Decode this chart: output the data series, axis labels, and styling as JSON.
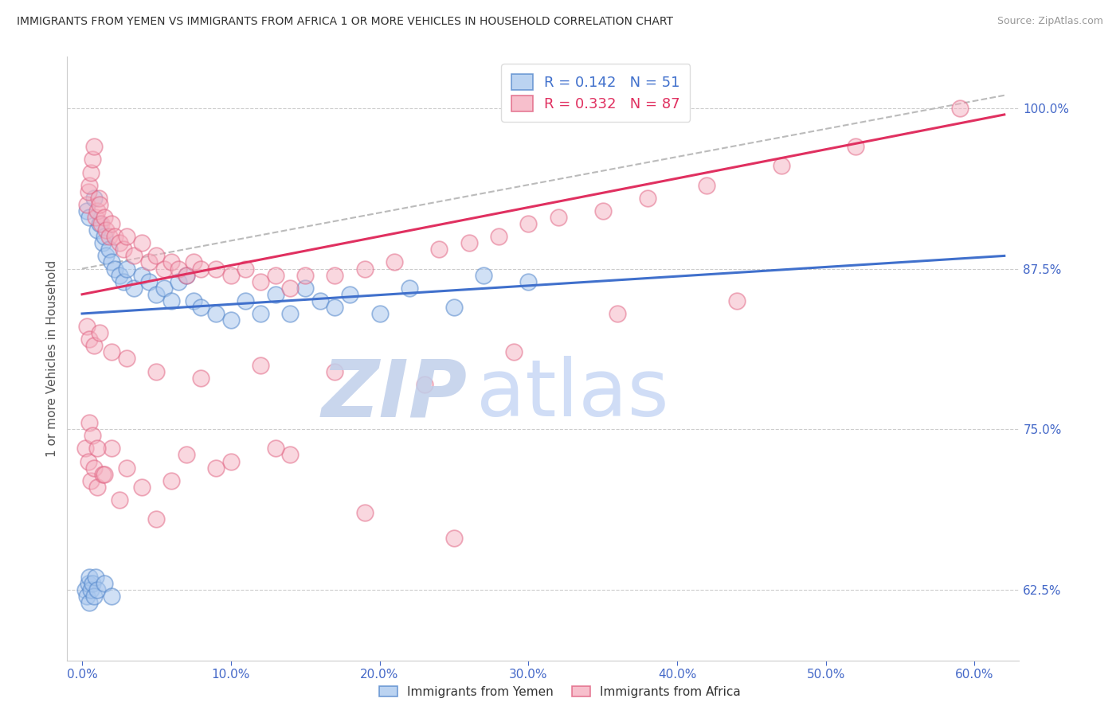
{
  "title": "IMMIGRANTS FROM YEMEN VS IMMIGRANTS FROM AFRICA 1 OR MORE VEHICLES IN HOUSEHOLD CORRELATION CHART",
  "source": "Source: ZipAtlas.com",
  "ylabel": "1 or more Vehicles in Household",
  "xlabel_ticks": [
    "0.0%",
    "10.0%",
    "20.0%",
    "30.0%",
    "40.0%",
    "50.0%",
    "60.0%"
  ],
  "xlabel_vals": [
    0.0,
    10.0,
    20.0,
    30.0,
    40.0,
    50.0,
    60.0
  ],
  "xlim": [
    -1.0,
    63
  ],
  "ylim": [
    57,
    104
  ],
  "legend_r_yemen": "0.142",
  "legend_n_yemen": "51",
  "legend_r_africa": "0.332",
  "legend_n_africa": "87",
  "watermark_zip": "ZIP",
  "watermark_atlas": "atlas",
  "watermark_color": "#cddff5",
  "blue_face": "#aac8ee",
  "blue_edge": "#5588cc",
  "pink_face": "#f5b0c0",
  "pink_edge": "#e06080",
  "blue_line_color": "#4070cc",
  "pink_line_color": "#e03060",
  "dashed_line_color": "#bbbbbb",
  "axis_label_color": "#4468c8",
  "grid_color": "#cccccc",
  "title_color": "#303030",
  "ytick_vals": [
    62.5,
    75.0,
    87.5,
    100.0
  ],
  "ytick_labels": [
    "62.5%",
    "75.0%",
    "87.5%",
    "100.0%"
  ],
  "blue_line_x0": 0,
  "blue_line_y0": 84.0,
  "blue_line_x1": 62,
  "blue_line_y1": 88.5,
  "pink_line_x0": 0,
  "pink_line_y0": 85.5,
  "pink_line_x1": 62,
  "pink_line_y1": 99.5,
  "dash_line_x0": 0,
  "dash_line_y0": 87.5,
  "dash_line_x1": 62,
  "dash_line_y1": 101.0,
  "yemen_x": [
    0.3,
    0.5,
    0.8,
    1.0,
    1.2,
    1.4,
    1.5,
    1.6,
    1.8,
    2.0,
    2.2,
    2.5,
    2.8,
    3.0,
    3.5,
    4.0,
    4.5,
    5.0,
    5.5,
    6.0,
    6.5,
    7.0,
    7.5,
    8.0,
    9.0,
    10.0,
    11.0,
    12.0,
    13.0,
    14.0,
    15.0,
    16.0,
    17.0,
    18.0,
    20.0,
    22.0,
    25.0,
    27.0,
    30.0,
    0.2,
    0.3,
    0.4,
    0.5,
    0.5,
    0.6,
    0.7,
    0.8,
    0.9,
    1.0,
    1.5,
    2.0
  ],
  "yemen_y": [
    92.0,
    91.5,
    93.0,
    90.5,
    91.0,
    89.5,
    90.0,
    88.5,
    89.0,
    88.0,
    87.5,
    87.0,
    86.5,
    87.5,
    86.0,
    87.0,
    86.5,
    85.5,
    86.0,
    85.0,
    86.5,
    87.0,
    85.0,
    84.5,
    84.0,
    83.5,
    85.0,
    84.0,
    85.5,
    84.0,
    86.0,
    85.0,
    84.5,
    85.5,
    84.0,
    86.0,
    84.5,
    87.0,
    86.5,
    62.5,
    62.0,
    63.0,
    61.5,
    63.5,
    62.5,
    63.0,
    62.0,
    63.5,
    62.5,
    63.0,
    62.0
  ],
  "africa_x": [
    0.3,
    0.4,
    0.5,
    0.6,
    0.7,
    0.8,
    0.9,
    1.0,
    1.1,
    1.2,
    1.3,
    1.5,
    1.6,
    1.8,
    2.0,
    2.2,
    2.5,
    2.8,
    3.0,
    3.5,
    4.0,
    4.5,
    5.0,
    5.5,
    6.0,
    6.5,
    7.0,
    7.5,
    8.0,
    9.0,
    10.0,
    11.0,
    12.0,
    13.0,
    14.0,
    15.0,
    17.0,
    19.0,
    21.0,
    24.0,
    26.0,
    28.0,
    30.0,
    32.0,
    35.0,
    38.0,
    42.0,
    47.0,
    52.0,
    59.0,
    0.2,
    0.4,
    0.6,
    0.8,
    1.0,
    1.4,
    2.0,
    3.0,
    5.0,
    7.0,
    10.0,
    14.0,
    19.0,
    25.0,
    0.3,
    0.5,
    0.8,
    1.2,
    2.0,
    3.0,
    5.0,
    8.0,
    12.0,
    17.0,
    23.0,
    29.0,
    36.0,
    44.0,
    0.5,
    0.7,
    1.0,
    1.5,
    2.5,
    4.0,
    6.0,
    9.0,
    13.0
  ],
  "africa_y": [
    92.5,
    93.5,
    94.0,
    95.0,
    96.0,
    97.0,
    91.5,
    92.0,
    93.0,
    92.5,
    91.0,
    91.5,
    90.5,
    90.0,
    91.0,
    90.0,
    89.5,
    89.0,
    90.0,
    88.5,
    89.5,
    88.0,
    88.5,
    87.5,
    88.0,
    87.5,
    87.0,
    88.0,
    87.5,
    87.5,
    87.0,
    87.5,
    86.5,
    87.0,
    86.0,
    87.0,
    87.0,
    87.5,
    88.0,
    89.0,
    89.5,
    90.0,
    91.0,
    91.5,
    92.0,
    93.0,
    94.0,
    95.5,
    97.0,
    100.0,
    73.5,
    72.5,
    71.0,
    72.0,
    70.5,
    71.5,
    73.5,
    72.0,
    68.0,
    73.0,
    72.5,
    73.0,
    68.5,
    66.5,
    83.0,
    82.0,
    81.5,
    82.5,
    81.0,
    80.5,
    79.5,
    79.0,
    80.0,
    79.5,
    78.5,
    81.0,
    84.0,
    85.0,
    75.5,
    74.5,
    73.5,
    71.5,
    69.5,
    70.5,
    71.0,
    72.0,
    73.5
  ]
}
